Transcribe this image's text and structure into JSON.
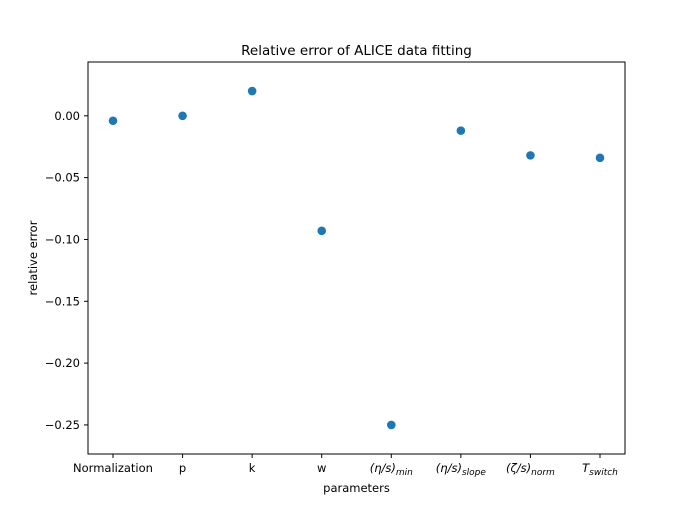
{
  "chart_data": {
    "type": "scatter",
    "title": "Relative error of ALICE data fitting",
    "xlabel": "parameters",
    "ylabel": "relative error",
    "categories": [
      {
        "main": "Normalization",
        "sub": ""
      },
      {
        "main": "p",
        "sub": ""
      },
      {
        "main": "k",
        "sub": ""
      },
      {
        "main": "w",
        "sub": ""
      },
      {
        "main": "(η/s)",
        "sub": "min"
      },
      {
        "main": "(η/s)",
        "sub": "slope"
      },
      {
        "main": "(ζ/s)",
        "sub": "norm"
      },
      {
        "main": "T",
        "sub": "switch"
      }
    ],
    "values": [
      -0.004,
      0.0,
      0.02,
      -0.093,
      -0.25,
      -0.012,
      -0.032,
      -0.034
    ],
    "ylim": [
      -0.2735,
      0.0435
    ],
    "yticks": [
      0.0,
      -0.05,
      -0.1,
      -0.15,
      -0.2,
      -0.25
    ],
    "ytick_labels": [
      "0.00",
      "−0.05",
      "−0.10",
      "−0.15",
      "−0.20",
      "−0.25"
    ],
    "grid": false,
    "marker_color": "#1f77b4"
  }
}
